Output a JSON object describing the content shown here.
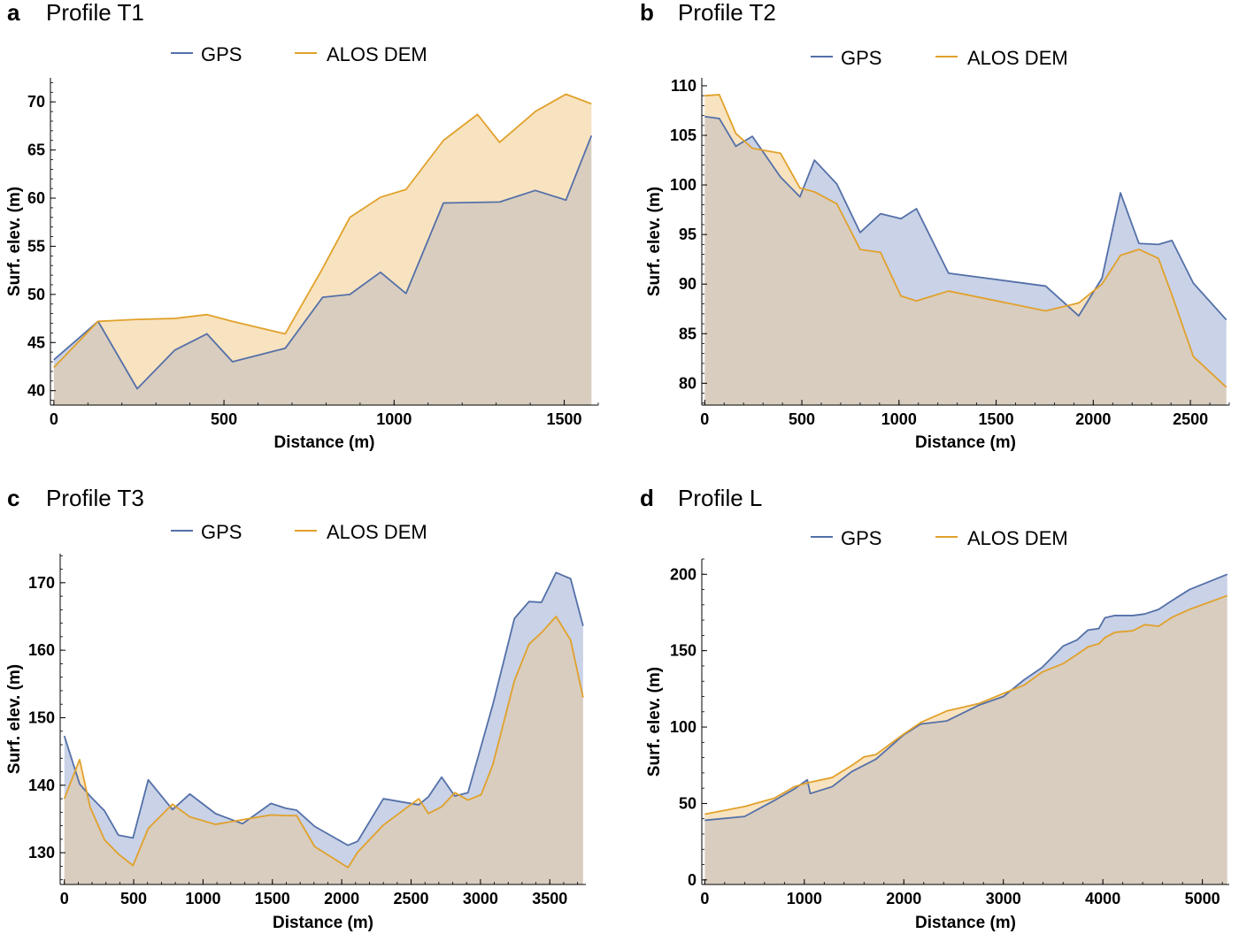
{
  "colors": {
    "gps": "#5470a8",
    "alos": "#e1a12b",
    "gps_fill": "#c9d2e7",
    "alos_fill": "#f8e3c0",
    "overlap_fill": "#d9cdbf",
    "axis": "#000000"
  },
  "chart_data": [
    {
      "type": "area",
      "letter": "a",
      "title": "Profile T1",
      "xlabel": "Distance (m)",
      "ylabel": "Surf. elev. (m)",
      "xlim": [
        -10,
        1600
      ],
      "ylim": [
        38.5,
        72.5
      ],
      "baseline": 38.5,
      "xticks": [
        0,
        500,
        1000,
        1500
      ],
      "yticks": [
        40,
        45,
        50,
        55,
        60,
        65,
        70
      ],
      "xticks_minor_step": 100,
      "yticks_minor_step": 1,
      "legend": [
        "GPS",
        "ALOS DEM"
      ],
      "series": [
        {
          "name": "GPS",
          "x": [
            0,
            130,
            245,
            355,
            450,
            525,
            680,
            790,
            870,
            960,
            1035,
            1145,
            1310,
            1415,
            1505,
            1580
          ],
          "y": [
            43.2,
            47.2,
            40.2,
            44.2,
            45.9,
            43.0,
            44.4,
            49.7,
            50.0,
            52.3,
            50.1,
            59.5,
            59.6,
            60.8,
            59.8,
            66.5
          ]
        },
        {
          "name": "ALOS DEM",
          "x": [
            0,
            130,
            245,
            355,
            450,
            525,
            680,
            790,
            870,
            960,
            1035,
            1145,
            1245,
            1310,
            1415,
            1505,
            1580
          ],
          "y": [
            42.4,
            47.2,
            47.4,
            47.5,
            47.9,
            47.2,
            45.9,
            52.7,
            58.0,
            60.1,
            60.9,
            66.0,
            68.7,
            65.8,
            69.0,
            70.8,
            69.8
          ]
        }
      ]
    },
    {
      "type": "area",
      "letter": "b",
      "title": "Profile T2",
      "xlabel": "Distance (m)",
      "ylabel": "Surf. elev. (m)",
      "xlim": [
        -15,
        2700
      ],
      "ylim": [
        77.8,
        110.8
      ],
      "baseline": 77.8,
      "xticks": [
        0,
        500,
        1000,
        1500,
        2000,
        2500
      ],
      "yticks": [
        80,
        85,
        90,
        95,
        100,
        105,
        110
      ],
      "xticks_minor_step": 100,
      "yticks_minor_step": 1,
      "legend": [
        "GPS",
        "ALOS DEM"
      ],
      "series": [
        {
          "name": "GPS",
          "x": [
            0,
            75,
            160,
            245,
            390,
            490,
            565,
            680,
            800,
            905,
            1010,
            1090,
            1255,
            1755,
            1925,
            2045,
            2140,
            2235,
            2335,
            2405,
            2515,
            2685
          ],
          "y": [
            106.9,
            106.7,
            103.9,
            104.9,
            100.8,
            98.8,
            102.5,
            100.1,
            95.2,
            97.1,
            96.6,
            97.6,
            91.1,
            89.8,
            86.8,
            90.6,
            99.2,
            94.1,
            94.0,
            94.4,
            90.1,
            86.4
          ]
        },
        {
          "name": "ALOS DEM",
          "x": [
            0,
            75,
            160,
            245,
            390,
            490,
            565,
            680,
            800,
            905,
            1010,
            1090,
            1255,
            1755,
            1925,
            2045,
            2140,
            2235,
            2335,
            2405,
            2515,
            2685
          ],
          "y": [
            109.0,
            109.1,
            105.2,
            103.7,
            103.2,
            99.7,
            99.3,
            98.1,
            93.5,
            93.2,
            88.8,
            88.3,
            89.3,
            87.3,
            88.1,
            90.0,
            92.9,
            93.5,
            92.6,
            88.9,
            82.7,
            79.6
          ]
        }
      ]
    },
    {
      "type": "area",
      "letter": "c",
      "title": "Profile T3",
      "xlabel": "Distance (m)",
      "ylabel": "Surf. elev. (m)",
      "xlim": [
        -30,
        3760
      ],
      "ylim": [
        125.3,
        174.3
      ],
      "baseline": 125.3,
      "xticks": [
        0,
        500,
        1000,
        1500,
        2000,
        2500,
        3000,
        3500
      ],
      "yticks": [
        130,
        140,
        150,
        160,
        170
      ],
      "xticks_minor_step": 100,
      "yticks_minor_step": 2,
      "legend": [
        "GPS",
        "ALOS DEM"
      ],
      "series": [
        {
          "name": "GPS",
          "x": [
            0,
            110,
            185,
            290,
            390,
            495,
            605,
            780,
            905,
            1090,
            1285,
            1490,
            1595,
            1675,
            1805,
            2045,
            2115,
            2300,
            2555,
            2625,
            2720,
            2815,
            2910,
            3005,
            3090,
            3245,
            3350,
            3440,
            3545,
            3650,
            3740
          ],
          "y": [
            147.3,
            140.2,
            138.4,
            136.2,
            132.6,
            132.2,
            140.8,
            136.4,
            138.7,
            135.8,
            134.3,
            137.3,
            136.6,
            136.3,
            133.9,
            131.1,
            131.7,
            138.0,
            137.1,
            138.3,
            141.2,
            138.4,
            138.9,
            145.8,
            152.0,
            164.7,
            167.2,
            167.1,
            171.5,
            170.6,
            163.6
          ]
        },
        {
          "name": "ALOS DEM",
          "x": [
            0,
            110,
            185,
            290,
            390,
            495,
            605,
            780,
            905,
            1090,
            1285,
            1490,
            1595,
            1675,
            1805,
            2045,
            2115,
            2300,
            2555,
            2625,
            2720,
            2815,
            2910,
            3005,
            3090,
            3245,
            3350,
            3440,
            3545,
            3650,
            3740
          ],
          "y": [
            138.0,
            143.8,
            136.8,
            131.9,
            129.8,
            128.1,
            133.6,
            137.2,
            135.3,
            134.2,
            134.9,
            135.6,
            135.5,
            135.5,
            130.9,
            127.8,
            130.1,
            134.1,
            138.0,
            135.8,
            136.8,
            138.9,
            137.8,
            138.6,
            143.1,
            155.5,
            160.9,
            162.6,
            165.0,
            161.5,
            153.0
          ]
        }
      ]
    },
    {
      "type": "area",
      "letter": "d",
      "title": "Profile L",
      "xlabel": "Distance (m)",
      "ylabel": "Surf. elev. (m)",
      "xlim": [
        -30,
        5270
      ],
      "ylim": [
        -3,
        210
      ],
      "baseline": -3,
      "xticks": [
        0,
        1000,
        2000,
        3000,
        4000,
        5000
      ],
      "yticks": [
        0,
        50,
        100,
        150,
        200
      ],
      "xticks_minor_step": 200,
      "yticks_minor_step": 10,
      "legend": [
        "GPS",
        "ALOS DEM"
      ],
      "series": [
        {
          "name": "GPS",
          "x": [
            0,
            400,
            700,
            900,
            1030,
            1060,
            1280,
            1480,
            1720,
            2000,
            2170,
            2430,
            2760,
            3000,
            3210,
            3390,
            3600,
            3740,
            3850,
            3960,
            4020,
            4120,
            4300,
            4420,
            4560,
            4700,
            4870,
            5250
          ],
          "y": [
            39.0,
            41.5,
            52.0,
            59.5,
            65.5,
            56.5,
            61.0,
            71.0,
            79.0,
            95.0,
            102.0,
            104.0,
            114.5,
            120.0,
            131.0,
            139.0,
            153.0,
            157.0,
            163.5,
            164.5,
            171.5,
            173.0,
            173.0,
            174.0,
            177.0,
            183.0,
            190.0,
            200.0
          ]
        },
        {
          "name": "ALOS DEM",
          "x": [
            0,
            400,
            700,
            900,
            1030,
            1280,
            1480,
            1600,
            1720,
            2000,
            2170,
            2430,
            2760,
            3000,
            3210,
            3390,
            3600,
            3740,
            3850,
            3960,
            4020,
            4120,
            4300,
            4420,
            4560,
            4700,
            4870,
            5250
          ],
          "y": [
            43.0,
            48.0,
            53.5,
            61.0,
            63.5,
            67.0,
            75.0,
            80.5,
            82.0,
            95.5,
            103.0,
            110.5,
            115.5,
            122.0,
            127.5,
            136.0,
            141.5,
            147.5,
            152.5,
            154.5,
            158.5,
            162.0,
            163.0,
            167.0,
            166.0,
            172.0,
            177.0,
            186.0
          ]
        }
      ]
    }
  ]
}
